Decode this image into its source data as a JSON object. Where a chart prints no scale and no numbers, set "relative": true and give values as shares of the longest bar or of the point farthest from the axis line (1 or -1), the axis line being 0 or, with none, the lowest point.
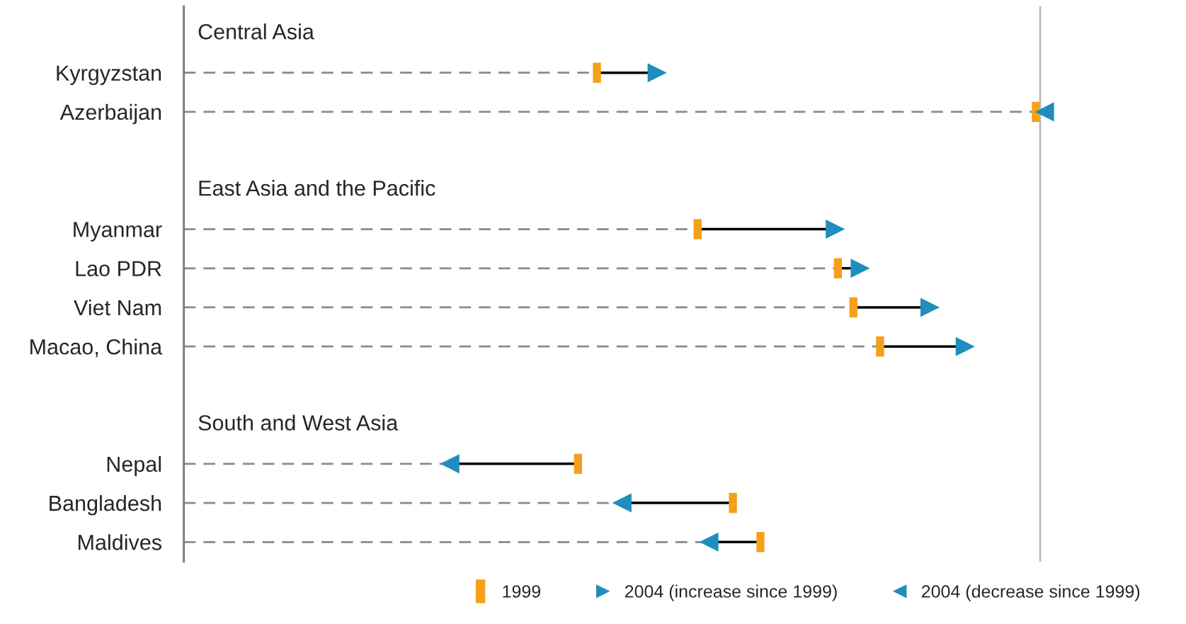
{
  "chart_data": {
    "type": "scatter",
    "relative": true,
    "orientation": "horizontal",
    "categories": [
      null,
      "Kyrgyzstan",
      "Azerbaijan",
      null,
      null,
      "Myanmar",
      "Lao PDR",
      "Viet Nam",
      "Macao, China",
      null,
      null,
      "Nepal",
      "Bangladesh",
      "Maldives"
    ],
    "annotations": [
      "Central Asia",
      "East Asia and the Pacific",
      "South and West Asia"
    ],
    "series": [
      {
        "name": "1999",
        "color": "#f5a01a",
        "values": [
          null,
          0.48,
          0.99,
          null,
          null,
          0.597,
          0.76,
          0.778,
          0.809,
          null,
          null,
          0.458,
          0.638,
          0.67
        ]
      },
      {
        "name": "2004 (increase since 1999)",
        "color": "#1f8dbd",
        "values": [
          null,
          0.55,
          null,
          null,
          null,
          0.757,
          0.786,
          0.867,
          0.908,
          null,
          null,
          null,
          null,
          null
        ]
      },
      {
        "name": "2004 (decrease since 1999)",
        "color": "#1f8dbd",
        "values": [
          null,
          null,
          1.0,
          null,
          null,
          null,
          null,
          null,
          null,
          null,
          null,
          0.309,
          0.509,
          0.61
        ]
      }
    ],
    "ref_lines": [
      {
        "axis": "x",
        "value": 0.995,
        "color": "#bbbbbb"
      }
    ],
    "legend": "bottom right",
    "grid": "y"
  }
}
